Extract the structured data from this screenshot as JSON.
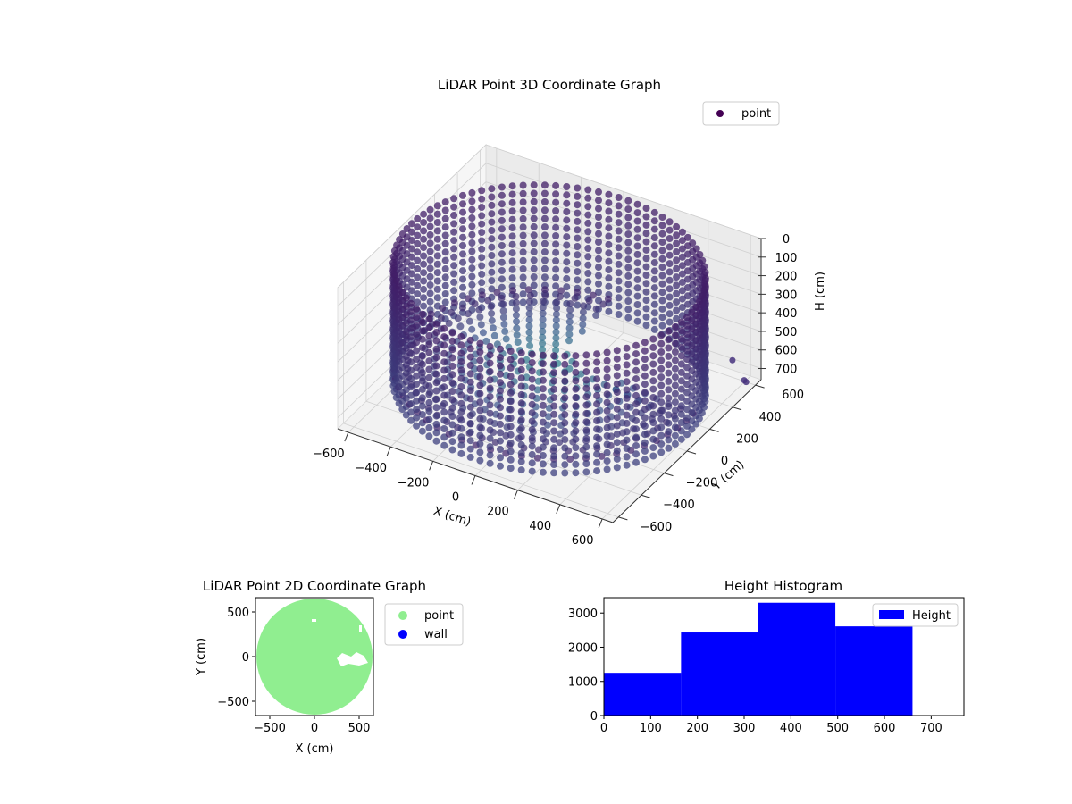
{
  "chart_data": [
    {
      "id": "chart3d",
      "type": "scatter",
      "title": "LiDAR Point 3D Coordinate Graph",
      "xlabel": "X (cm)",
      "ylabel": "Y (cm)",
      "zlabel": "H (cm)",
      "xlim": [
        -650,
        650
      ],
      "ylim": [
        -650,
        650
      ],
      "zlim": [
        0,
        760
      ],
      "z_inverted": true,
      "x_ticks": [
        -600,
        -400,
        -200,
        0,
        200,
        400,
        600
      ],
      "y_ticks": [
        -600,
        -400,
        -200,
        0,
        200,
        400,
        600
      ],
      "z_ticks": [
        0,
        100,
        200,
        300,
        400,
        500,
        600,
        700
      ],
      "x_tick_labels": [
        "−600",
        "−400",
        "−200",
        "0",
        "200",
        "400",
        "600"
      ],
      "y_tick_labels": [
        "−600",
        "−400",
        "−200",
        "0",
        "200",
        "400",
        "600"
      ],
      "z_tick_labels": [
        "0",
        "100",
        "200",
        "300",
        "400",
        "500",
        "600",
        "700"
      ],
      "colormap": "viridis",
      "legend": {
        "entries": [
          "point"
        ],
        "placement": "top-right"
      },
      "grid": true,
      "series": [
        {
          "name": "point",
          "description_shape": "cylindrical wall ring radius ~650 height 0-700, inner floor/open sector, outlier points",
          "ring_radius": 650,
          "ring_height": [
            0,
            700
          ],
          "outliers": [
            [
              520,
              640,
              700
            ],
            [
              640,
              520,
              690
            ],
            [
              660,
              500,
              680
            ]
          ]
        }
      ]
    },
    {
      "id": "chart2d",
      "type": "scatter",
      "title": "LiDAR Point 2D Coordinate Graph",
      "xlabel": "X (cm)",
      "ylabel": "Y (cm)",
      "xlim": [
        -660,
        660
      ],
      "ylim": [
        -660,
        660
      ],
      "x_ticks": [
        -500,
        0,
        500
      ],
      "y_ticks": [
        -500,
        0,
        500
      ],
      "x_tick_labels": [
        "−500",
        "0",
        "500"
      ],
      "y_tick_labels": [
        "−500",
        "0",
        "500"
      ],
      "legend": {
        "entries": [
          "point",
          "wall"
        ],
        "placement": "outside-right"
      },
      "series": [
        {
          "name": "point",
          "color": "#90ee90",
          "disk_radius": 650
        },
        {
          "name": "wall",
          "color": "#0000ff"
        }
      ]
    },
    {
      "id": "hist",
      "type": "bar",
      "title": "Height Histogram",
      "xlim": [
        0,
        770
      ],
      "ylim": [
        0,
        3450
      ],
      "x_ticks": [
        0,
        100,
        200,
        300,
        400,
        500,
        600,
        700
      ],
      "y_ticks": [
        0,
        1000,
        2000,
        3000
      ],
      "x_tick_labels": [
        "0",
        "100",
        "200",
        "300",
        "400",
        "500",
        "600",
        "700"
      ],
      "y_tick_labels": [
        "0",
        "1000",
        "2000",
        "3000"
      ],
      "bin_edges": [
        0,
        165,
        330,
        495,
        660
      ],
      "values": [
        1250,
        2430,
        3300,
        2610
      ],
      "color": "#0000ff",
      "legend": {
        "entries": [
          "Height"
        ],
        "placement": "top-right"
      }
    }
  ]
}
